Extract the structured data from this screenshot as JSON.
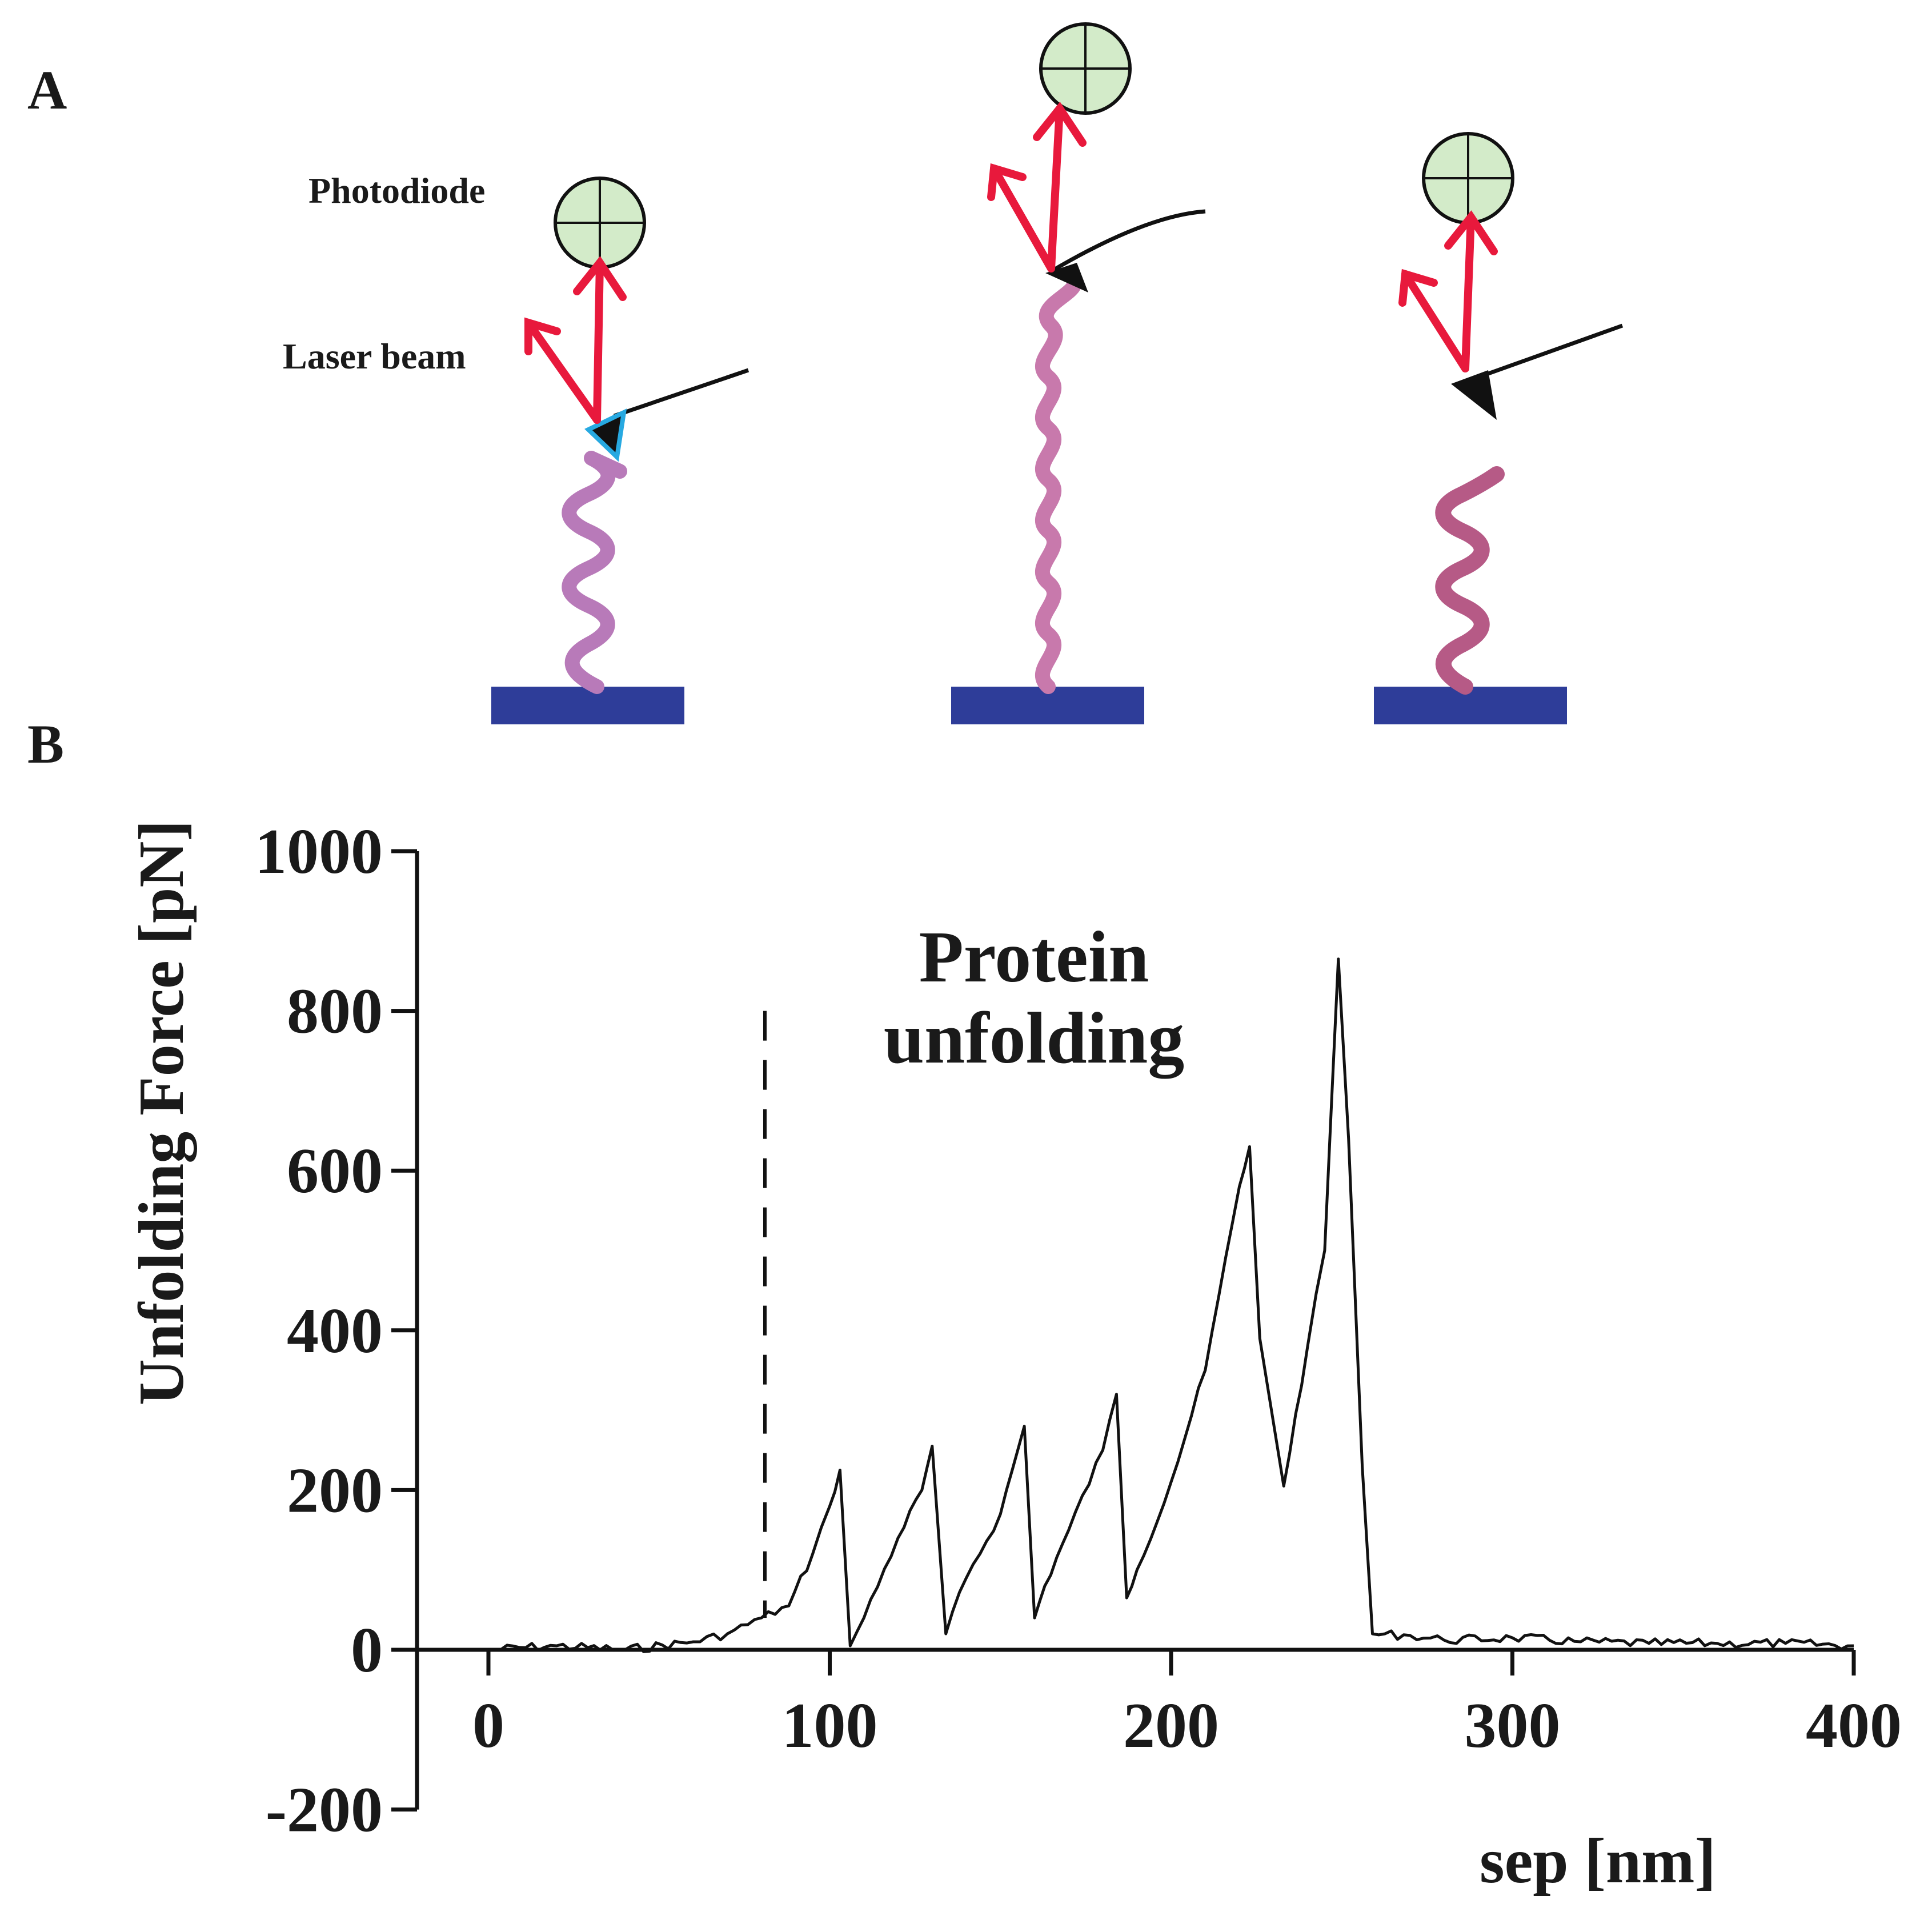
{
  "panels": {
    "a_label": "A",
    "b_label": "B"
  },
  "diagram": {
    "photodiode_label": "Photodiode",
    "laser_label": "Laser beam",
    "colors": {
      "laser": "#e8193c",
      "photodiode_fill": "#d3ebc9",
      "surface": "#2e3d99",
      "protein_1": "#b87ab9",
      "protein_2": "#c879ac",
      "protein_3": "#b65a86",
      "tip_outline": "#27a9e1"
    }
  },
  "chart_data": {
    "type": "line",
    "xlabel": "sep [nm]",
    "ylabel": "Unfolding Force [pN]",
    "xlim": [
      0,
      400
    ],
    "ylim": [
      -200,
      1000
    ],
    "xticks": [
      0,
      100,
      200,
      300,
      400
    ],
    "yticks": [
      -200,
      0,
      200,
      400,
      600,
      800,
      1000
    ],
    "annotation": [
      "Protein",
      "unfolding"
    ],
    "marker_x": 81,
    "grid": false,
    "series": [
      {
        "color": "#111111",
        "x": [
          0,
          20,
          40,
          60,
          70,
          80,
          88,
          95,
          100,
          103,
          106,
          110,
          120,
          127,
          130,
          134,
          140,
          150,
          157,
          160,
          163,
          170,
          180,
          184,
          187,
          190,
          200,
          210,
          220,
          223,
          226,
          233,
          240,
          245,
          249,
          252,
          256,
          259,
          270,
          280,
          300,
          320,
          340,
          360,
          380,
          400
        ],
        "y": [
          0,
          5,
          0,
          10,
          20,
          40,
          55,
          120,
          180,
          225,
          5,
          40,
          140,
          200,
          255,
          20,
          90,
          170,
          280,
          40,
          80,
          150,
          250,
          320,
          65,
          100,
          210,
          350,
          580,
          630,
          390,
          205,
          380,
          500,
          865,
          640,
          230,
          20,
          18,
          12,
          15,
          10,
          8,
          8,
          8,
          5
        ]
      }
    ]
  }
}
